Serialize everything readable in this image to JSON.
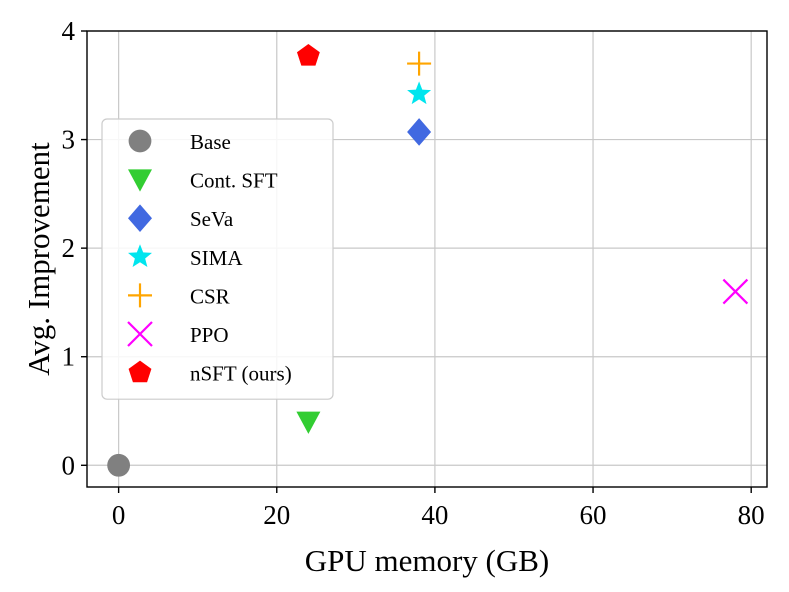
{
  "chart_data": {
    "type": "scatter",
    "title": "",
    "xlabel": "GPU memory (GB)",
    "ylabel": "Avg. Improvement",
    "xlim": [
      -4,
      82
    ],
    "ylim": [
      -0.2,
      4.0
    ],
    "xticks": [
      0,
      20,
      40,
      60,
      80
    ],
    "yticks": [
      0,
      1,
      2,
      3,
      4
    ],
    "xtick_labels": [
      "0",
      "20",
      "40",
      "60",
      "80"
    ],
    "ytick_labels": [
      "0",
      "1",
      "2",
      "3",
      "4"
    ],
    "grid": true,
    "legend_position": "center-left",
    "series": [
      {
        "name": "Base",
        "marker": "circle",
        "color": "#808080",
        "x": 0,
        "y": 0.0
      },
      {
        "name": "Cont. SFT",
        "marker": "triangle-down",
        "color": "#32cd32",
        "x": 24,
        "y": 0.4
      },
      {
        "name": "SeVa",
        "marker": "diamond",
        "color": "#4169e1",
        "x": 38,
        "y": 3.07
      },
      {
        "name": "SIMA",
        "marker": "star",
        "color": "#00e5ee",
        "x": 38,
        "y": 3.42
      },
      {
        "name": "CSR",
        "marker": "plus",
        "color": "#ffa500",
        "x": 38,
        "y": 3.7
      },
      {
        "name": "PPO",
        "marker": "x",
        "color": "#ff00ff",
        "x": 78,
        "y": 1.6
      },
      {
        "name": "nSFT (ours)",
        "marker": "pentagon",
        "color": "#ff0000",
        "x": 24,
        "y": 3.77
      }
    ]
  }
}
